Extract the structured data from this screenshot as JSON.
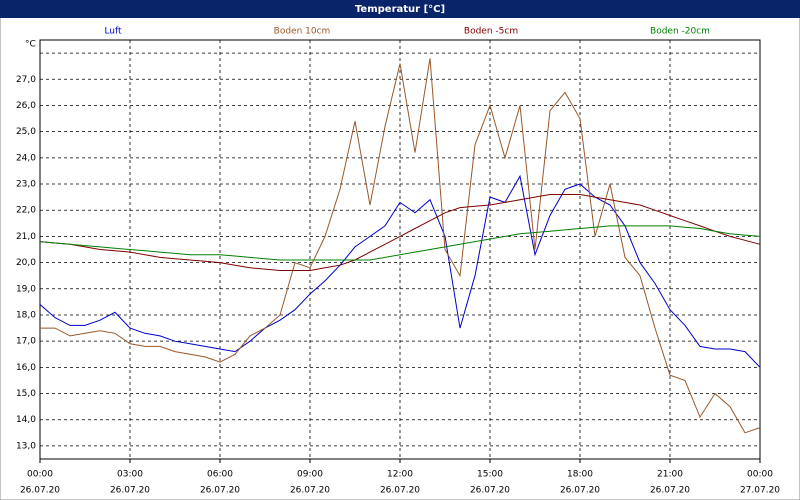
{
  "chart_data": {
    "type": "line",
    "title": "Temperatur [°C]",
    "y_unit": "°C",
    "x": [
      0,
      0.5,
      1,
      1.5,
      2,
      2.5,
      3,
      3.5,
      4,
      4.5,
      5,
      5.5,
      6,
      6.5,
      7,
      7.5,
      8,
      8.5,
      9,
      9.5,
      10,
      10.5,
      11,
      11.5,
      12,
      12.5,
      13,
      13.5,
      14,
      14.5,
      15,
      15.5,
      16,
      16.5,
      17,
      17.5,
      18,
      18.5,
      19,
      19.5,
      20,
      20.5,
      21,
      21.5,
      22,
      22.5,
      23,
      23.5,
      24
    ],
    "series": [
      {
        "name": "Luft",
        "color": "#0000cc",
        "values": [
          18.4,
          17.9,
          17.6,
          17.6,
          17.8,
          18.1,
          17.5,
          17.3,
          17.2,
          17.0,
          16.9,
          16.8,
          16.7,
          16.6,
          17.0,
          17.5,
          17.8,
          18.2,
          18.8,
          19.3,
          19.9,
          20.6,
          21.0,
          21.4,
          22.3,
          21.9,
          22.4,
          21.0,
          17.5,
          19.5,
          22.5,
          22.3,
          23.3,
          20.3,
          21.8,
          22.8,
          23.0,
          22.5,
          22.2,
          21.4,
          20.0,
          19.2,
          18.2,
          17.6,
          16.8,
          16.7,
          16.7,
          16.6,
          16.0
        ]
      },
      {
        "name": "Boden 10cm",
        "color": "#99582a",
        "values": [
          17.5,
          17.5,
          17.2,
          17.3,
          17.4,
          17.3,
          16.9,
          16.8,
          16.8,
          16.6,
          16.5,
          16.4,
          16.2,
          16.5,
          17.2,
          17.5,
          18.0,
          20.0,
          19.8,
          21.0,
          22.8,
          25.4,
          22.2,
          25.2,
          27.6,
          24.2,
          27.8,
          20.5,
          19.5,
          24.5,
          26.0,
          24.0,
          26.0,
          20.5,
          25.8,
          26.5,
          25.5,
          21.0,
          23.0,
          20.2,
          19.5,
          17.5,
          15.7,
          15.5,
          14.1,
          15.0,
          14.5,
          13.5,
          13.7
        ]
      },
      {
        "name": "Boden -5cm",
        "color": "#800000",
        "values": [
          20.8,
          20.75,
          20.7,
          20.6,
          20.5,
          20.45,
          20.4,
          20.3,
          20.2,
          20.15,
          20.1,
          20.05,
          20.0,
          19.9,
          19.8,
          19.75,
          19.7,
          19.7,
          19.7,
          19.8,
          19.9,
          20.1,
          20.4,
          20.7,
          21.0,
          21.3,
          21.6,
          21.9,
          22.1,
          22.15,
          22.2,
          22.3,
          22.4,
          22.5,
          22.6,
          22.6,
          22.6,
          22.5,
          22.4,
          22.3,
          22.2,
          22.0,
          21.8,
          21.6,
          21.4,
          21.2,
          21.0,
          20.85,
          20.7
        ]
      },
      {
        "name": "Boden -20cm",
        "color": "#008000",
        "values": [
          20.8,
          20.75,
          20.7,
          20.65,
          20.6,
          20.55,
          20.5,
          20.45,
          20.4,
          20.35,
          20.3,
          20.3,
          20.3,
          20.25,
          20.2,
          20.15,
          20.1,
          20.1,
          20.1,
          20.1,
          20.1,
          20.1,
          20.1,
          20.2,
          20.3,
          20.4,
          20.5,
          20.6,
          20.7,
          20.8,
          20.9,
          21.0,
          21.1,
          21.15,
          21.2,
          21.25,
          21.3,
          21.35,
          21.4,
          21.4,
          21.4,
          21.4,
          21.4,
          21.35,
          21.3,
          21.2,
          21.1,
          21.05,
          21.0
        ]
      }
    ],
    "xlim": [
      0,
      24
    ],
    "xticks": [
      {
        "value": 0,
        "label": "00:00"
      },
      {
        "value": 3,
        "label": "03:00"
      },
      {
        "value": 6,
        "label": "06:00"
      },
      {
        "value": 9,
        "label": "09:00"
      },
      {
        "value": 12,
        "label": "12:00"
      },
      {
        "value": 15,
        "label": "15:00"
      },
      {
        "value": 18,
        "label": "18:00"
      },
      {
        "value": 21,
        "label": "21:00"
      },
      {
        "value": 24,
        "label": "00:00"
      }
    ],
    "xtick_dates": [
      "26.07.20",
      "26.07.20",
      "26.07.20",
      "26.07.20",
      "26.07.20",
      "26.07.20",
      "26.07.20",
      "26.07.20",
      "27.07.20"
    ],
    "ylim": [
      12.5,
      28.5
    ],
    "yticks": [
      {
        "value": 13,
        "label": "13,0"
      },
      {
        "value": 14,
        "label": "14,0"
      },
      {
        "value": 15,
        "label": "15,0"
      },
      {
        "value": 16,
        "label": "16,0"
      },
      {
        "value": 17,
        "label": "17,0"
      },
      {
        "value": 18,
        "label": "18,0"
      },
      {
        "value": 19,
        "label": "19,0"
      },
      {
        "value": 20,
        "label": "20,0"
      },
      {
        "value": 21,
        "label": "21,0"
      },
      {
        "value": 22,
        "label": "22,0"
      },
      {
        "value": 23,
        "label": "23,0"
      },
      {
        "value": 24,
        "label": "24,0"
      },
      {
        "value": 25,
        "label": "25,0"
      },
      {
        "value": 26,
        "label": "26,0"
      },
      {
        "value": 27,
        "label": "27,0"
      },
      {
        "value": 28,
        "label": ""
      }
    ],
    "grid": true
  }
}
